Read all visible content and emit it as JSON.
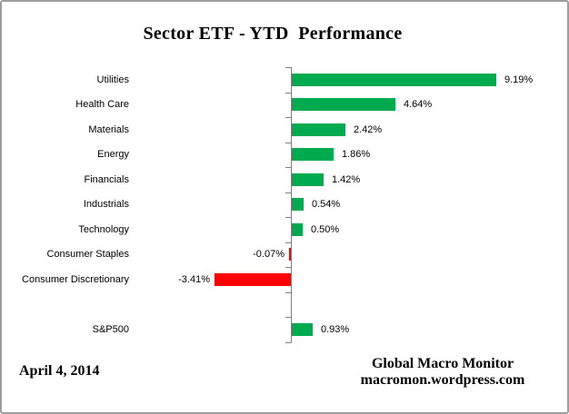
{
  "title": "Sector ETF - YTD  Performance",
  "footer": {
    "date": "April 4, 2014",
    "credit_line1": "Global Macro Monitor",
    "credit_line2": "macromon.wordpress.com"
  },
  "chart_data": {
    "type": "bar",
    "orientation": "horizontal",
    "title": "Sector ETF - YTD  Performance",
    "xlabel": "",
    "ylabel": "",
    "grid": false,
    "legend": false,
    "value_unit": "%",
    "categories": [
      "Utilities",
      "Health Care",
      "Materials",
      "Energy",
      "Financials",
      "Industrials",
      "Technology",
      "Consumer Staples",
      "Consumer Discretionary",
      "",
      "S&P500"
    ],
    "values": [
      9.19,
      4.64,
      2.42,
      1.86,
      1.42,
      0.54,
      0.5,
      -0.07,
      -3.41,
      null,
      0.93
    ],
    "value_labels": [
      "9.19%",
      "4.64%",
      "2.42%",
      "1.86%",
      "1.42%",
      "0.54%",
      "0.50%",
      "-0.07%",
      "-3.41%",
      "",
      "0.93%"
    ],
    "colors": {
      "positive_bar": "#00AB50",
      "negative_bar": "#FF0000",
      "axis": "#808080",
      "text": "#000000"
    }
  }
}
